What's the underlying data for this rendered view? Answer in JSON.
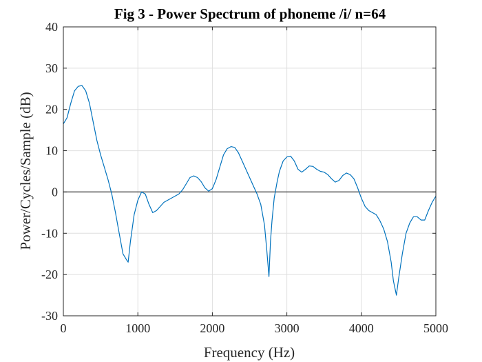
{
  "chart_data": {
    "type": "line",
    "title": "Fig 3 - Power Spectrum of phoneme /i/ n=64",
    "xlabel": "Frequency (Hz)",
    "ylabel": "Power/Cycles/Sample (dB)",
    "xlim": [
      0,
      5000
    ],
    "ylim": [
      -30,
      40
    ],
    "xticks": [
      0,
      1000,
      2000,
      3000,
      4000,
      5000
    ],
    "yticks": [
      -30,
      -20,
      -10,
      0,
      10,
      20,
      30,
      40
    ],
    "grid": true,
    "zero_line": true,
    "colors": {
      "line": "#0072BD",
      "grid": "#dfdfdf",
      "axes": "#262626",
      "zero_line": "#555555"
    },
    "series": [
      {
        "x": [
          0,
          50,
          100,
          150,
          200,
          250,
          300,
          350,
          400,
          450,
          500,
          550,
          600,
          650,
          700,
          750,
          800,
          850,
          870,
          900,
          950,
          1000,
          1050,
          1100,
          1150,
          1200,
          1250,
          1300,
          1350,
          1400,
          1450,
          1500,
          1550,
          1600,
          1650,
          1700,
          1750,
          1800,
          1850,
          1900,
          1950,
          2000,
          2050,
          2100,
          2150,
          2200,
          2250,
          2300,
          2350,
          2400,
          2450,
          2500,
          2550,
          2600,
          2650,
          2700,
          2730,
          2760,
          2780,
          2800,
          2830,
          2870,
          2900,
          2950,
          3000,
          3050,
          3100,
          3150,
          3200,
          3250,
          3300,
          3350,
          3400,
          3450,
          3500,
          3550,
          3600,
          3650,
          3700,
          3750,
          3800,
          3850,
          3900,
          3950,
          4000,
          4050,
          4100,
          4150,
          4200,
          4250,
          4300,
          4350,
          4400,
          4430,
          4470,
          4500,
          4550,
          4600,
          4650,
          4700,
          4750,
          4800,
          4850,
          4900,
          4950,
          5000
        ],
        "y": [
          16.5,
          18.0,
          21.5,
          24.5,
          25.6,
          25.8,
          24.5,
          21.5,
          17.0,
          12.5,
          9.0,
          6.0,
          3.0,
          -0.5,
          -5.0,
          -10.0,
          -15.0,
          -16.5,
          -17.0,
          -12.0,
          -5.5,
          -2.0,
          0.0,
          -0.5,
          -3.0,
          -5.0,
          -4.5,
          -3.5,
          -2.5,
          -2.0,
          -1.5,
          -1.0,
          -0.5,
          0.5,
          2.0,
          3.5,
          3.9,
          3.5,
          2.5,
          1.0,
          0.2,
          0.8,
          3.0,
          6.0,
          9.0,
          10.5,
          11.0,
          10.8,
          9.5,
          7.5,
          5.5,
          3.5,
          1.5,
          -0.5,
          -3.0,
          -8.0,
          -14.0,
          -20.5,
          -12.0,
          -7.0,
          -1.5,
          2.5,
          5.0,
          7.5,
          8.5,
          8.7,
          7.5,
          5.5,
          4.8,
          5.5,
          6.3,
          6.2,
          5.5,
          5.0,
          4.8,
          4.2,
          3.2,
          2.4,
          2.8,
          4.0,
          4.6,
          4.2,
          3.2,
          1.0,
          -1.5,
          -3.5,
          -4.5,
          -5.0,
          -5.5,
          -7.0,
          -9.0,
          -12.0,
          -17.0,
          -21.5,
          -25.0,
          -21.0,
          -15.0,
          -10.0,
          -7.5,
          -6.0,
          -6.0,
          -6.8,
          -6.8,
          -4.5,
          -2.5,
          -1.0
        ]
      }
    ]
  }
}
